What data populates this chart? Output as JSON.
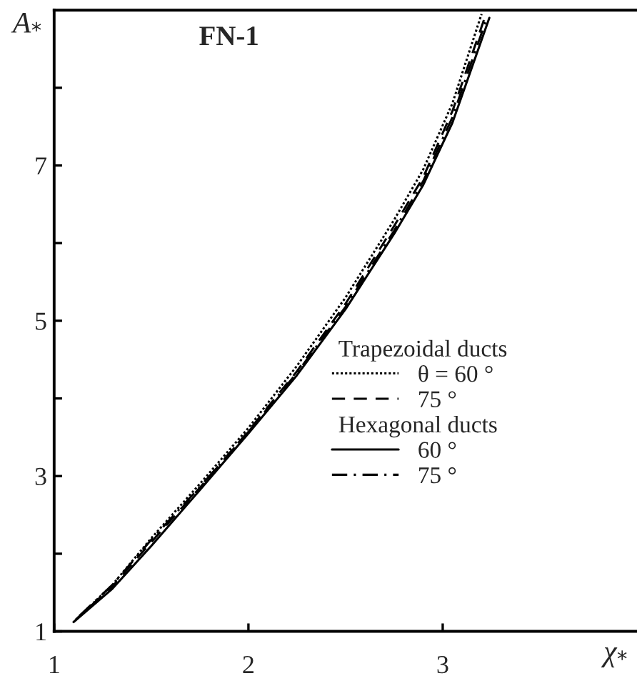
{
  "chart_data": {
    "type": "line",
    "title": "FN-1",
    "xlabel": "χ$_{*}$",
    "ylabel": "A$_{*}$",
    "annotations": [
      "Trapezoidal ducts",
      "Hexagonal ducts"
    ],
    "series": [
      {
        "name": "θ = 60 °",
        "color": "#000000",
        "line_style": "dotted",
        "x": [
          1.12,
          1.3,
          1.5,
          1.75,
          2.0,
          2.25,
          2.5,
          2.75,
          2.9,
          3.05,
          3.2
        ],
        "values": [
          1.17,
          1.6,
          2.2,
          2.9,
          3.62,
          4.42,
          5.3,
          6.3,
          6.95,
          7.8,
          8.95
        ]
      },
      {
        "name": "75 °",
        "color": "#000000",
        "line_style": "dashed",
        "x": [
          1.11,
          1.3,
          1.5,
          1.75,
          2.0,
          2.25,
          2.5,
          2.75,
          2.9,
          3.05,
          3.22
        ],
        "values": [
          1.15,
          1.58,
          2.15,
          2.85,
          3.58,
          4.35,
          5.22,
          6.22,
          6.85,
          7.7,
          8.93
        ]
      },
      {
        "name": "60 °",
        "color": "#000000",
        "line_style": "solid",
        "x": [
          1.1,
          1.3,
          1.5,
          1.75,
          2.0,
          2.25,
          2.5,
          2.75,
          2.9,
          3.05,
          3.24
        ],
        "values": [
          1.12,
          1.55,
          2.1,
          2.82,
          3.55,
          4.3,
          5.15,
          6.12,
          6.75,
          7.55,
          8.9
        ]
      },
      {
        "name": "75 °",
        "color": "#000000",
        "line_style": "dashdot",
        "x": [
          1.13,
          1.3,
          1.5,
          1.75,
          2.0,
          2.25,
          2.5,
          2.75,
          2.9,
          3.05,
          3.23
        ],
        "values": [
          1.2,
          1.6,
          2.18,
          2.86,
          3.57,
          4.33,
          5.18,
          6.16,
          6.8,
          7.62,
          8.92
        ]
      }
    ],
    "xlim": [
      1,
      4
    ],
    "ylim": [
      1,
      9
    ],
    "xticks": [
      1,
      2,
      3
    ],
    "yticks": [
      1,
      {
        "value": 2,
        "label": null
      },
      3,
      {
        "value": 4,
        "label": null
      },
      5,
      {
        "value": 6,
        "label": null
      },
      7,
      {
        "value": 8,
        "label": null
      }
    ],
    "grid": false,
    "legend": "right"
  }
}
